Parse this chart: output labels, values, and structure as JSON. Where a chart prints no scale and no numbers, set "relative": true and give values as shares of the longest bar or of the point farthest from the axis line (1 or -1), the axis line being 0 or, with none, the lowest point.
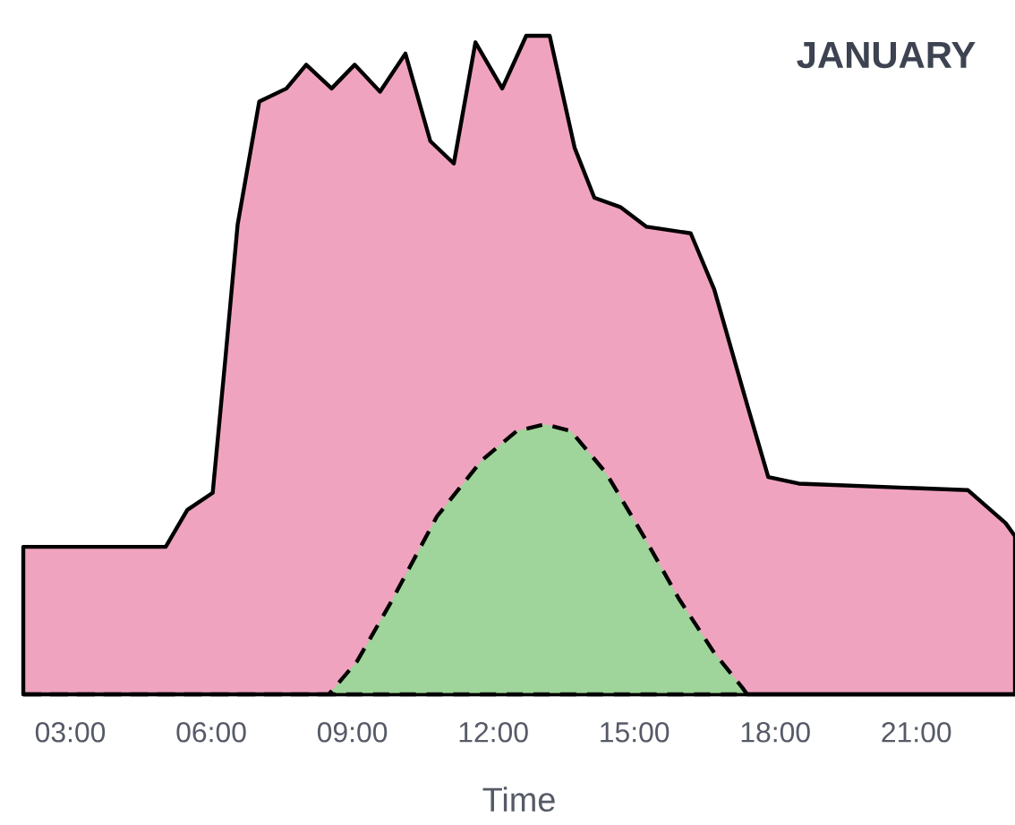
{
  "chart_data": {
    "type": "area",
    "title": "JANUARY",
    "xlabel": "Time",
    "relative": true,
    "xlim": [
      2,
      23.1
    ],
    "xticks": [
      {
        "value": 3,
        "label": "03:00"
      },
      {
        "value": 6,
        "label": "06:00"
      },
      {
        "value": 9,
        "label": "09:00"
      },
      {
        "value": 12,
        "label": "12:00"
      },
      {
        "value": 15,
        "label": "15:00"
      },
      {
        "value": 18,
        "label": "18:00"
      },
      {
        "value": 21,
        "label": "21:00"
      }
    ],
    "grid": false,
    "tick_labels": "x",
    "series": [
      {
        "color": "#f0a3bf",
        "line_style": "solid",
        "x": [
          2,
          5.03,
          5.49,
          6.03,
          6.3,
          6.56,
          7.02,
          7.6,
          8.02,
          8.56,
          9.05,
          9.59,
          10.13,
          10.66,
          11.16,
          11.62,
          12.19,
          12.7,
          13.2,
          13.73,
          14.15,
          14.7,
          15.26,
          16.2,
          16.7,
          17.4,
          17.85,
          18.5,
          22.1,
          22.9,
          23.1
        ],
        "values": [
          0.224,
          0.224,
          0.28,
          0.306,
          0.51,
          0.713,
          0.9,
          0.92,
          0.956,
          0.92,
          0.956,
          0.915,
          0.973,
          0.84,
          0.806,
          0.99,
          0.92,
          1.0,
          1.0,
          0.83,
          0.754,
          0.74,
          0.71,
          0.7,
          0.615,
          0.44,
          0.33,
          0.32,
          0.31,
          0.26,
          0.24
        ]
      },
      {
        "color": "#9fd49a",
        "line_style": "dashed",
        "x": [
          2,
          8.5,
          9.1,
          9.8,
          10.8,
          11.75,
          12.5,
          13.1,
          13.65,
          14.4,
          15.2,
          15.95,
          16.7,
          17.3,
          17.4,
          23.1
        ],
        "values": [
          0,
          0,
          0.05,
          0.137,
          0.27,
          0.355,
          0.4,
          0.41,
          0.4,
          0.336,
          0.24,
          0.145,
          0.063,
          0.01,
          0,
          0
        ]
      }
    ]
  }
}
